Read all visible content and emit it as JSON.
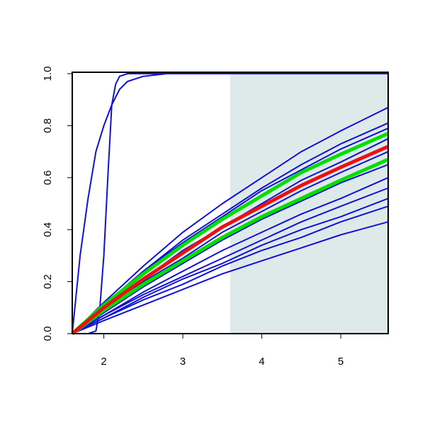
{
  "chart_data": {
    "type": "line",
    "x": [
      1.6,
      2,
      2.5,
      3,
      3.5,
      4,
      4.5,
      5,
      5.6
    ],
    "xlim": [
      1.6,
      5.6
    ],
    "xticks": [
      2,
      3,
      4,
      5
    ],
    "ylim": [
      0,
      1
    ],
    "yticks": [
      {
        "value": 0,
        "label": "0.0"
      },
      {
        "value": 0.2,
        "label": "0.2"
      },
      {
        "value": 0.4,
        "label": "0.4"
      },
      {
        "value": 0.6,
        "label": "0.6"
      },
      {
        "value": 0.8,
        "label": "0.8"
      },
      {
        "value": 1,
        "label": "1.0"
      }
    ],
    "highlight_x": [
      3.6,
      5.6
    ],
    "highlight_color": "#deeaea",
    "series": [
      {
        "color": "#1010d8",
        "values": [
          0,
          0.12,
          0.26,
          0.39,
          0.5,
          0.6,
          0.7,
          0.78,
          0.87
        ]
      },
      {
        "color": "#1010d8",
        "values": [
          0,
          0.11,
          0.24,
          0.36,
          0.46,
          0.56,
          0.65,
          0.73,
          0.81
        ]
      },
      {
        "color": "#1010d8",
        "values": [
          0,
          0.11,
          0.24,
          0.35,
          0.45,
          0.55,
          0.63,
          0.71,
          0.79
        ]
      },
      {
        "color": "#1010d8",
        "values": [
          0,
          0.1,
          0.21,
          0.32,
          0.41,
          0.5,
          0.59,
          0.66,
          0.75
        ]
      },
      {
        "color": "#1010d8",
        "values": [
          0,
          0.09,
          0.2,
          0.29,
          0.39,
          0.47,
          0.55,
          0.62,
          0.7
        ]
      },
      {
        "color": "#1010d8",
        "values": [
          0,
          0.08,
          0.18,
          0.27,
          0.36,
          0.44,
          0.51,
          0.58,
          0.65
        ]
      },
      {
        "color": "#1010d8",
        "values": [
          0,
          0.07,
          0.16,
          0.24,
          0.32,
          0.39,
          0.46,
          0.52,
          0.6
        ]
      },
      {
        "color": "#1010d8",
        "values": [
          0,
          0.07,
          0.15,
          0.22,
          0.29,
          0.36,
          0.43,
          0.49,
          0.56
        ]
      },
      {
        "color": "#1010d8",
        "values": [
          0,
          0.06,
          0.14,
          0.21,
          0.27,
          0.34,
          0.4,
          0.45,
          0.52
        ]
      },
      {
        "color": "#1010d8",
        "values": [
          0,
          0.06,
          0.13,
          0.19,
          0.26,
          0.32,
          0.37,
          0.43,
          0.49
        ]
      },
      {
        "color": "#1010d8",
        "values": [
          0,
          0.05,
          0.11,
          0.17,
          0.23,
          0.28,
          0.33,
          0.38,
          0.43
        ]
      },
      {
        "color": "#1010d8",
        "x": [
          1.6,
          1.8,
          1.9,
          1.95,
          2.0,
          2.05,
          2.1,
          2.15,
          2.2,
          2.3,
          2.5,
          5.6
        ],
        "values": [
          0,
          0,
          0.01,
          0.1,
          0.3,
          0.6,
          0.88,
          0.96,
          0.99,
          1,
          1,
          1
        ]
      },
      {
        "color": "#1010d8",
        "x": [
          1.6,
          1.7,
          1.8,
          1.9,
          2.0,
          2.1,
          2.2,
          2.3,
          2.5,
          2.8,
          5.6
        ],
        "values": [
          0,
          0.3,
          0.52,
          0.7,
          0.8,
          0.88,
          0.94,
          0.97,
          0.99,
          1,
          1
        ]
      },
      {
        "color": "#00e000",
        "width": 5,
        "values": [
          0,
          0.11,
          0.23,
          0.34,
          0.44,
          0.53,
          0.62,
          0.69,
          0.77
        ]
      },
      {
        "color": "#00e000",
        "width": 5,
        "values": [
          0,
          0.09,
          0.19,
          0.28,
          0.37,
          0.45,
          0.52,
          0.59,
          0.67
        ]
      },
      {
        "color": "#ee1010",
        "width": 5,
        "values": [
          0,
          0.1,
          0.21,
          0.31,
          0.41,
          0.49,
          0.57,
          0.64,
          0.72
        ]
      }
    ]
  }
}
